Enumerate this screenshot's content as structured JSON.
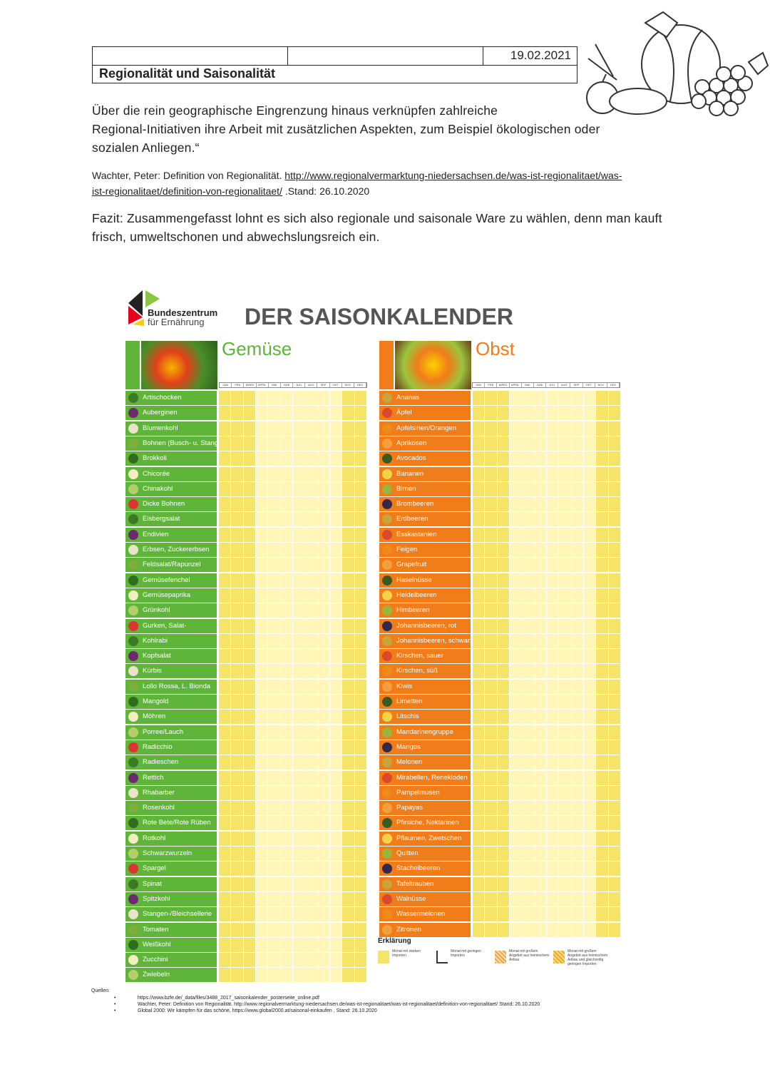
{
  "header": {
    "date": "19.02.2021",
    "title": "Regionalität und Saisonalität"
  },
  "quote_lines": [
    "Über die rein geographische Eingrenzung hinaus verknüpfen zahlreiche",
    "Regional-Initiativen ihre Arbeit mit zusätzlichen Aspekten, zum Beispiel ökologischen oder",
    "sozialen Anliegen.“"
  ],
  "citation": {
    "author": "Wachter, Peter: Definition von Regionalität.",
    "link_lines": [
      "http://www.regionalvermarktung-niedersachsen.de/was-ist-regionalitaet/was-",
      "ist-regionalitaet/definition-von-regionalitaet/"
    ],
    "stand": ".Stand: 26.10.2020"
  },
  "fazit_lines": [
    "Fazit: Zusammengefasst lohnt es sich also regionale und saisonale Ware zu wählen, denn man kauft",
    "frisch, umweltschonen und abwechslungsreich ein."
  ],
  "calendar": {
    "brand_lines": [
      "Bundeszentrum",
      "für Ernährung"
    ],
    "title": "DER SAISONKALENDER",
    "months": [
      "JAN",
      "FEB",
      "MÄRZ",
      "APRIL",
      "MAI",
      "JUNI",
      "JULI",
      "AUG",
      "SEP",
      "OKT",
      "NOV",
      "DEZ"
    ],
    "vegetables": {
      "heading": "Gemüse",
      "items": [
        "Artischocken",
        "Auberginen",
        "Blumenkohl",
        "Bohnen (Busch- u. Stangen)",
        "Brokkoli",
        "Chicorée",
        "Chinakohl",
        "Dicke Bohnen",
        "Eisbergsalat",
        "Endivien",
        "Erbsen, Zuckererbsen",
        "Feldsalat/Rapunzel",
        "Gemüsefenchel",
        "Gemüsepaprika",
        "Grünkohl",
        "Gurken, Salat-",
        "Kohlrabi",
        "Kopfsalat",
        "Kürbis",
        "Lollo Rossa, L. Bionda",
        "Mangold",
        "Möhren",
        "Porree/Lauch",
        "Radicchio",
        "Radieschen",
        "Rettich",
        "Rhabarber",
        "Rosenkohl",
        "Rote Bete/Rote Rüben",
        "Rotkohl",
        "Schwarzwurzeln",
        "Spargel",
        "Spinat",
        "Spitzkohl",
        "Stangen-/Bleichsellerie",
        "Tomaten",
        "Weißkohl",
        "Zucchini",
        "Zwiebeln"
      ]
    },
    "fruit": {
      "heading": "Obst",
      "items": [
        "Ananas",
        "Äpfel",
        "Apfelsinen/Orangen",
        "Aprikosen",
        "Avocados",
        "Bananen",
        "Birnen",
        "Brombeeren",
        "Erdbeeren",
        "Esskastanien",
        "Feigen",
        "Grapefruit",
        "Haselnüsse",
        "Heidelbeeren",
        "Himbeeren",
        "Johannisbeeren, rot",
        "Johannisbeeren, schwarz",
        "Kirschen, sauer",
        "Kirschen, süß",
        "Kiwis",
        "Limetten",
        "Litschis",
        "Mandarinengruppe",
        "Mangos",
        "Melonen",
        "Mirabellen, Renekloden",
        "Pampelmusen",
        "Papayas",
        "Pfirsiche, Nektarinen",
        "Pflaumen, Zwetschen",
        "Quitten",
        "Stachelbeeren",
        "Tafeltrauben",
        "Walnüsse",
        "Wassermelonen",
        "Zitronen"
      ]
    },
    "legend": {
      "title": "Erklärung",
      "items": [
        "Monat mit starken Importen",
        "Monat mit geringen Importen",
        "Monat mit großem Angebot aus heimischem Anbau",
        "Monat mit großem Angebot aus heimischem Anbau und gleichzeitig geringen Importen"
      ]
    }
  },
  "sources": {
    "label": "Quellen:",
    "items": [
      "https://www.bzfe.de/_data/files/3488_2017_saisonkalender_posterseite_online.pdf",
      "Wachter, Peter: Definition von Regionalität. http://www.regionalvermarktung-niedersachsen.de/was-ist-regionalitaet/was-ist-regionalitaet/definition-von-regionalitaet/ Stand: 26.10.2020",
      "Global 2000: Wir kämpfen für das schöne, https://www.global2000.at/saisonal-einkaufen , Stand: 26.10.2020"
    ]
  }
}
